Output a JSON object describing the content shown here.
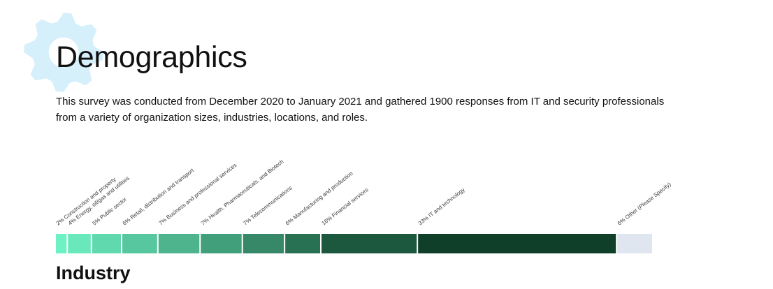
{
  "page": {
    "title": "Demographics",
    "intro": "This survey was conducted from December 2020 to January 2021 and gathered 1900 responses from IT and security professionals from a variety of organization sizes, industries, locations, and roles.",
    "section_title": "Industry"
  },
  "colors": {
    "gear": "#d6f0fb",
    "bar_start": "#6ef2c4",
    "bar_end": "#0f3f28",
    "other": "#dfe6ef",
    "label": "#3a3a3a",
    "divider": "#ffffff"
  },
  "chart_data": {
    "type": "bar",
    "orientation": "horizontal-stacked",
    "categories": [
      "Construction and property",
      "Energy, oil/gas and utilities",
      "Public sector",
      "Retail, distribution and transport",
      "Business and professional services",
      "Health, Pharmaceuticals, and Biotech",
      "Telecommunications",
      "Manufacturing and production",
      "Financial services",
      "IT and technology",
      "Other (Please Specify)"
    ],
    "values": [
      2,
      4,
      5,
      6,
      7,
      7,
      7,
      6,
      16,
      33,
      6
    ],
    "labels": [
      "2% Construction and property",
      "4% Energy, oil/gas and utilities",
      "5% Public sector",
      "6% Retail, distribution and transport",
      "7% Business and professional services",
      "7% Health, Pharmaceuticals, and Biotech",
      "7% Telecommunications",
      "6% Manufacturing and production",
      "16% Financial services",
      "33% IT and technology",
      "6% Other (Please Specify)"
    ],
    "unit": "%",
    "title": "",
    "xlabel": "",
    "ylabel": "",
    "legend": "none",
    "grid": false
  }
}
